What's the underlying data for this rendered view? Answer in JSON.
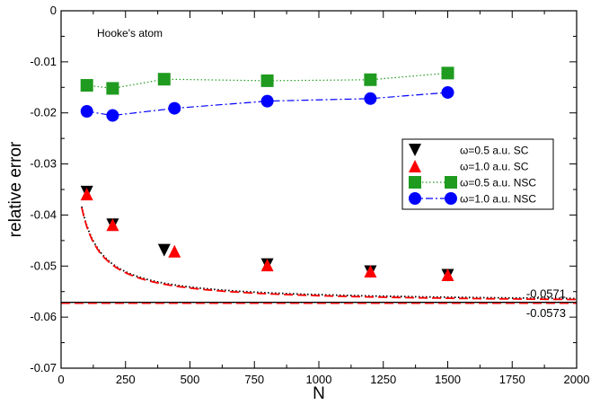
{
  "chart_data": {
    "type": "scatter",
    "title": "",
    "xlabel": "N",
    "ylabel": "relative error",
    "xlim": [
      0,
      2000
    ],
    "ylim": [
      -0.07,
      0
    ],
    "grid": false,
    "legend_position": "right",
    "x_ticks": [
      0,
      250,
      500,
      750,
      1000,
      1250,
      1500,
      1750,
      2000
    ],
    "y_ticks": [
      0,
      -0.01,
      -0.02,
      -0.03,
      -0.04,
      -0.05,
      -0.06,
      -0.07
    ],
    "x_tick_labels": [
      "0",
      "250",
      "500",
      "750",
      "1000",
      "1250",
      "1500",
      "1750",
      "2000"
    ],
    "y_tick_labels": [
      "0",
      "-0.01",
      "-0.02",
      "-0.03",
      "-0.04",
      "-0.05",
      "-0.06",
      "-0.07"
    ],
    "annotation": "Hooke's atom",
    "series": [
      {
        "name": "ω=0.5 a.u.  SC",
        "marker": "triangle-down",
        "line": "none",
        "color": "#000000",
        "x": [
          100,
          200,
          400,
          800,
          1200,
          1500
        ],
        "y": [
          -0.0355,
          -0.0419,
          -0.0469,
          -0.0497,
          -0.0511,
          -0.0518
        ]
      },
      {
        "name": "ω=1.0 a.u.  SC",
        "marker": "triangle-up",
        "line": "none",
        "color": "#ff0000",
        "x": [
          100,
          200,
          440,
          800,
          1200,
          1500
        ],
        "y": [
          -0.0359,
          -0.0419,
          -0.0471,
          -0.0498,
          -0.051,
          -0.0517
        ]
      },
      {
        "name": "ω=0.5 a.u.  NSC",
        "marker": "square",
        "line": "dotted",
        "color": "#1f9b1f",
        "x": [
          100,
          200,
          400,
          800,
          1200,
          1500
        ],
        "y": [
          -0.0146,
          -0.0152,
          -0.0134,
          -0.0137,
          -0.0135,
          -0.0122
        ]
      },
      {
        "name": "ω=1.0 a.u.  NSC",
        "marker": "circle",
        "line": "dash-dot",
        "color": "#0000ff",
        "x": [
          100,
          200,
          440,
          800,
          1200,
          1500
        ],
        "y": [
          -0.0197,
          -0.0205,
          -0.0191,
          -0.0177,
          -0.0172,
          -0.016
        ]
      }
    ],
    "fit_curves": [
      {
        "color": "#000000",
        "style": "dotted",
        "form": "limit + a/N",
        "limit": -0.0571,
        "a": 1.5,
        "x_range": [
          80,
          2000
        ]
      },
      {
        "color": "#ff0000",
        "style": "dashed",
        "form": "limit + a/N",
        "limit": -0.0573,
        "a": 1.5,
        "x_range": [
          80,
          2000
        ]
      }
    ],
    "reference_lines": [
      {
        "y": -0.0571,
        "label": "-0.0571",
        "color": "#000000",
        "style": "solid"
      },
      {
        "y": -0.0573,
        "label": "-0.0573",
        "color": "#ff0000",
        "style": "dashed"
      }
    ]
  }
}
